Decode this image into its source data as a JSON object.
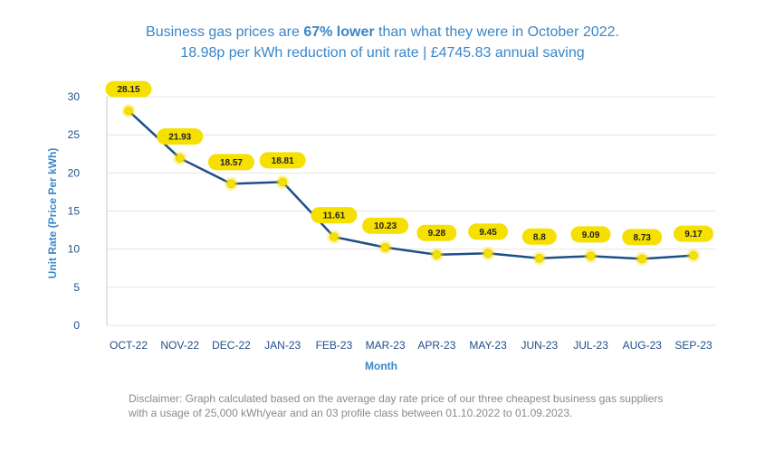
{
  "header": {
    "line1_a": "Business gas prices are ",
    "line1_b": "67% lower",
    "line1_c": " than what they were in October 2022.",
    "line2": "18.98p per kWh reduction of unit rate | £4745.83 annual saving"
  },
  "disclaimer": "Disclaimer: Graph calculated based on the average day rate price of our three cheapest business gas suppliers with a usage of 25,000 kWh/year and an 03 profile class between 01.10.2022 to 01.09.2023.",
  "colors": {
    "line": "#1f4e87",
    "marker": "#f5e000",
    "label_bg": "#f5e000",
    "title": "#3a86c8"
  },
  "chart_data": {
    "type": "line",
    "categories": [
      "OCT-22",
      "NOV-22",
      "DEC-22",
      "JAN-23",
      "FEB-23",
      "MAR-23",
      "APR-23",
      "MAY-23",
      "JUN-23",
      "JUL-23",
      "AUG-23",
      "SEP-23"
    ],
    "values": [
      28.15,
      21.93,
      18.57,
      18.81,
      11.61,
      10.23,
      9.28,
      9.45,
      8.8,
      9.09,
      8.73,
      9.17
    ],
    "xlabel": "Month",
    "ylabel": "Unit Rate (Price Per kWh)",
    "ylim": [
      0,
      30
    ],
    "yticks": [
      0,
      5,
      10,
      15,
      20,
      25,
      30
    ],
    "grid": true,
    "legend": "none"
  }
}
